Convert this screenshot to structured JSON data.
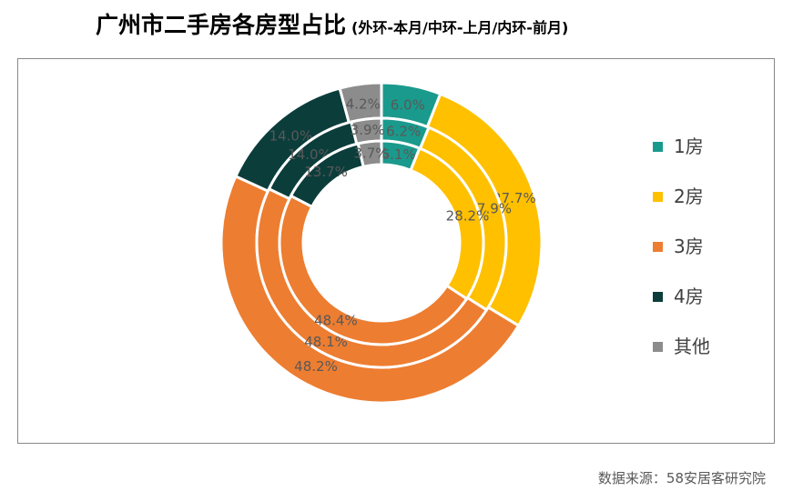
{
  "title": "广州市二手房各房型占比",
  "subtitle": "(外环-本月/中环-上月/内环-前月)",
  "source": "数据来源：58安居客研究院",
  "colors": [
    "#1a9a8c",
    "#ffc000",
    "#ed7d31",
    "#0b3d3b",
    "#8c8c8c"
  ],
  "chart_data": {
    "type": "donut",
    "title": "广州市二手房各房型占比",
    "subtitle": "(外环-本月/中环-上月/内环-前月)",
    "categories": [
      "1房",
      "2房",
      "3房",
      "4房",
      "其他"
    ],
    "rings": [
      {
        "ring": "outer",
        "values": [
          6.0,
          27.7,
          48.2,
          14.0,
          4.2
        ],
        "labels": [
          "6.0%",
          "27.7%",
          "48.2%",
          "14.0%",
          "4.2%"
        ]
      },
      {
        "ring": "middle",
        "values": [
          6.2,
          27.9,
          48.1,
          14.0,
          3.9
        ],
        "labels": [
          "6.2%",
          "27.9%",
          "48.1%",
          "14.0%",
          "3.9%"
        ]
      },
      {
        "ring": "inner",
        "values": [
          6.1,
          28.2,
          48.4,
          13.7,
          3.7
        ],
        "labels": [
          "6.1%",
          "28.2%",
          "48.4%",
          "13.7%",
          "3.7%"
        ]
      }
    ],
    "legend": {
      "position": "right",
      "items": [
        "1房",
        "2房",
        "3房",
        "4房",
        "其他"
      ]
    }
  }
}
